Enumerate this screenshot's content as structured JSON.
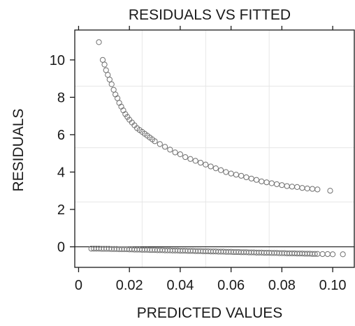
{
  "chart_data": {
    "type": "scatter",
    "title": "RESIDUALS VS FITTED",
    "xlabel": "PREDICTED VALUES",
    "ylabel": "RESIDUALS",
    "xlim": [
      -0.0015,
      0.1085
    ],
    "ylim": [
      -1.1,
      11.6
    ],
    "x_ticks": [
      0,
      0.02,
      0.04,
      0.06,
      0.08,
      0.1
    ],
    "x_tick_labels": [
      "0",
      "0.02",
      "0.04",
      "0.06",
      "0.08",
      "0.10"
    ],
    "y_ticks": [
      0,
      2,
      4,
      6,
      8,
      10
    ],
    "y_tick_labels": [
      "0",
      "2",
      "4",
      "6",
      "8",
      "10"
    ],
    "grid": true,
    "grid_x": [
      0.025,
      0.05,
      0.075
    ],
    "grid_y": [
      2.4,
      5.3,
      8.6
    ],
    "reference_line_y": 0,
    "marker_color": "#707070",
    "series": [
      {
        "points": [
          [
            0.008,
            10.95
          ],
          [
            0.0095,
            10.0
          ],
          [
            0.0102,
            9.75
          ],
          [
            0.0108,
            9.45
          ],
          [
            0.0115,
            9.2
          ],
          [
            0.0122,
            8.95
          ],
          [
            0.013,
            8.7
          ],
          [
            0.0138,
            8.4
          ],
          [
            0.0145,
            8.15
          ],
          [
            0.0153,
            7.95
          ],
          [
            0.016,
            7.7
          ],
          [
            0.0168,
            7.5
          ],
          [
            0.0176,
            7.3
          ],
          [
            0.0184,
            7.1
          ],
          [
            0.0192,
            6.95
          ],
          [
            0.02,
            6.8
          ],
          [
            0.021,
            6.65
          ],
          [
            0.022,
            6.5
          ],
          [
            0.023,
            6.35
          ],
          [
            0.024,
            6.25
          ],
          [
            0.025,
            6.15
          ],
          [
            0.026,
            6.05
          ],
          [
            0.027,
            5.95
          ],
          [
            0.028,
            5.85
          ],
          [
            0.029,
            5.75
          ],
          [
            0.03,
            5.65
          ],
          [
            0.032,
            5.5
          ],
          [
            0.034,
            5.35
          ],
          [
            0.036,
            5.2
          ],
          [
            0.038,
            5.05
          ],
          [
            0.04,
            4.95
          ],
          [
            0.042,
            4.8
          ],
          [
            0.044,
            4.7
          ],
          [
            0.046,
            4.6
          ],
          [
            0.048,
            4.5
          ],
          [
            0.05,
            4.4
          ],
          [
            0.052,
            4.3
          ],
          [
            0.054,
            4.2
          ],
          [
            0.056,
            4.1
          ],
          [
            0.058,
            4.0
          ],
          [
            0.06,
            3.92
          ],
          [
            0.062,
            3.86
          ],
          [
            0.064,
            3.8
          ],
          [
            0.066,
            3.72
          ],
          [
            0.068,
            3.65
          ],
          [
            0.07,
            3.58
          ],
          [
            0.072,
            3.5
          ],
          [
            0.074,
            3.45
          ],
          [
            0.076,
            3.4
          ],
          [
            0.078,
            3.35
          ],
          [
            0.08,
            3.3
          ],
          [
            0.082,
            3.25
          ],
          [
            0.084,
            3.22
          ],
          [
            0.086,
            3.2
          ],
          [
            0.088,
            3.15
          ],
          [
            0.09,
            3.12
          ],
          [
            0.092,
            3.1
          ],
          [
            0.094,
            3.07
          ],
          [
            0.099,
            3.0
          ]
        ]
      },
      {
        "points": [
          [
            0.005,
            -0.1
          ],
          [
            0.006,
            -0.1
          ],
          [
            0.007,
            -0.1
          ],
          [
            0.008,
            -0.1
          ],
          [
            0.009,
            -0.11
          ],
          [
            0.01,
            -0.11
          ],
          [
            0.011,
            -0.11
          ],
          [
            0.012,
            -0.11
          ],
          [
            0.013,
            -0.12
          ],
          [
            0.014,
            -0.12
          ],
          [
            0.015,
            -0.12
          ],
          [
            0.016,
            -0.13
          ],
          [
            0.017,
            -0.13
          ],
          [
            0.018,
            -0.13
          ],
          [
            0.019,
            -0.13
          ],
          [
            0.02,
            -0.14
          ],
          [
            0.021,
            -0.14
          ],
          [
            0.022,
            -0.15
          ],
          [
            0.023,
            -0.15
          ],
          [
            0.024,
            -0.15
          ],
          [
            0.025,
            -0.16
          ],
          [
            0.026,
            -0.16
          ],
          [
            0.027,
            -0.16
          ],
          [
            0.028,
            -0.17
          ],
          [
            0.029,
            -0.17
          ],
          [
            0.03,
            -0.17
          ],
          [
            0.031,
            -0.18
          ],
          [
            0.032,
            -0.18
          ],
          [
            0.033,
            -0.18
          ],
          [
            0.034,
            -0.19
          ],
          [
            0.035,
            -0.19
          ],
          [
            0.036,
            -0.19
          ],
          [
            0.037,
            -0.2
          ],
          [
            0.038,
            -0.2
          ],
          [
            0.039,
            -0.2
          ],
          [
            0.04,
            -0.21
          ],
          [
            0.041,
            -0.21
          ],
          [
            0.042,
            -0.21
          ],
          [
            0.043,
            -0.22
          ],
          [
            0.044,
            -0.22
          ],
          [
            0.045,
            -0.22
          ],
          [
            0.046,
            -0.23
          ],
          [
            0.047,
            -0.23
          ],
          [
            0.048,
            -0.23
          ],
          [
            0.049,
            -0.24
          ],
          [
            0.05,
            -0.24
          ],
          [
            0.051,
            -0.24
          ],
          [
            0.052,
            -0.25
          ],
          [
            0.053,
            -0.25
          ],
          [
            0.054,
            -0.25
          ],
          [
            0.055,
            -0.26
          ],
          [
            0.056,
            -0.26
          ],
          [
            0.057,
            -0.26
          ],
          [
            0.058,
            -0.27
          ],
          [
            0.059,
            -0.27
          ],
          [
            0.06,
            -0.27
          ],
          [
            0.061,
            -0.28
          ],
          [
            0.062,
            -0.28
          ],
          [
            0.063,
            -0.28
          ],
          [
            0.064,
            -0.29
          ],
          [
            0.065,
            -0.29
          ],
          [
            0.066,
            -0.29
          ],
          [
            0.067,
            -0.3
          ],
          [
            0.068,
            -0.3
          ],
          [
            0.069,
            -0.3
          ],
          [
            0.07,
            -0.31
          ],
          [
            0.071,
            -0.31
          ],
          [
            0.072,
            -0.31
          ],
          [
            0.073,
            -0.32
          ],
          [
            0.074,
            -0.32
          ],
          [
            0.075,
            -0.32
          ],
          [
            0.076,
            -0.33
          ],
          [
            0.077,
            -0.33
          ],
          [
            0.078,
            -0.33
          ],
          [
            0.079,
            -0.34
          ],
          [
            0.08,
            -0.34
          ],
          [
            0.081,
            -0.34
          ],
          [
            0.082,
            -0.35
          ],
          [
            0.083,
            -0.35
          ],
          [
            0.084,
            -0.35
          ],
          [
            0.085,
            -0.35
          ],
          [
            0.086,
            -0.36
          ],
          [
            0.087,
            -0.36
          ],
          [
            0.088,
            -0.36
          ],
          [
            0.089,
            -0.37
          ],
          [
            0.09,
            -0.37
          ],
          [
            0.091,
            -0.37
          ],
          [
            0.092,
            -0.38
          ],
          [
            0.093,
            -0.38
          ],
          [
            0.094,
            -0.38
          ],
          [
            0.096,
            -0.39
          ],
          [
            0.098,
            -0.39
          ],
          [
            0.1,
            -0.4
          ],
          [
            0.104,
            -0.4
          ]
        ]
      }
    ]
  }
}
